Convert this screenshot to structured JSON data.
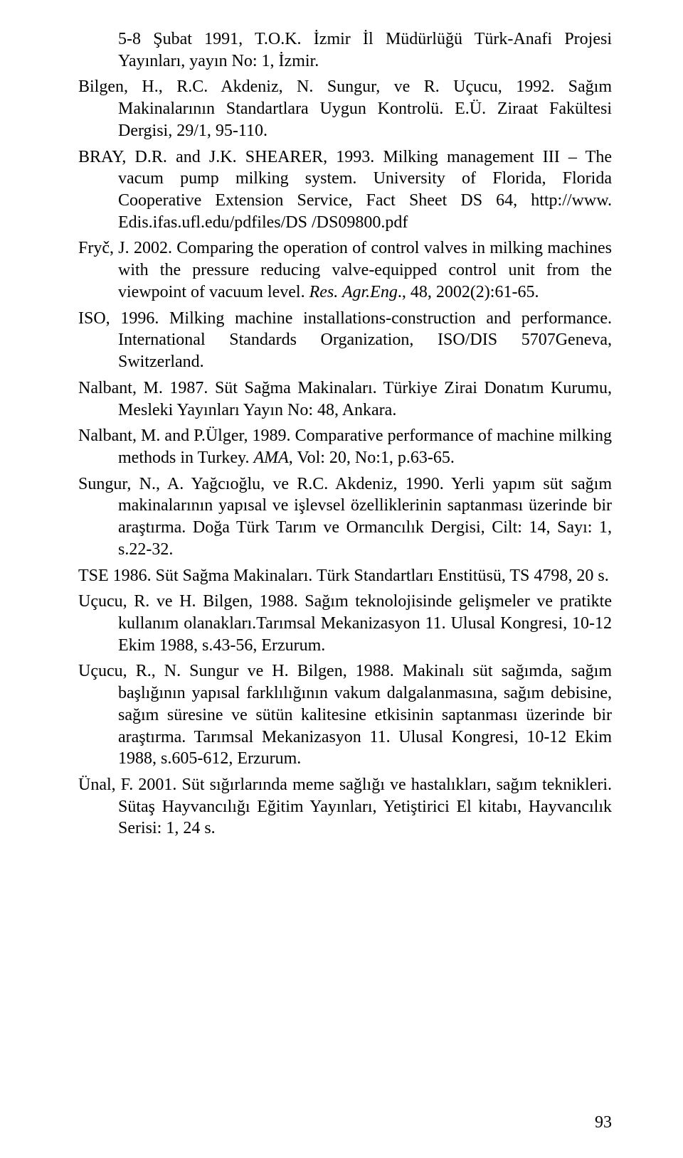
{
  "page": {
    "number": "93",
    "font_family": "Times New Roman",
    "base_fontsize": 24,
    "text_color": "#000000",
    "background_color": "#ffffff"
  },
  "references": {
    "r1a": "5-8 Şubat 1991, T.O.K. İzmir İl Müdürlüğü Türk-Anafi Projesi Yayınları, yayın No: 1, İzmir.",
    "r2": "Bilgen, H., R.C. Akdeniz, N. Sungur, ve R. Uçucu, 1992. Sağım Makinalarının Standartlara Uygun Kontrolü. E.Ü. Ziraat Fakültesi Dergisi, 29/1, 95-110.",
    "r3a": "BRAY, D.R. and J.K. SHEARER, 1993. Milking management III – The vacum pump milking system. University of Florida, Florida Cooperative Extension Service, Fact Sheet DS 64, http://www. Edis.ifas.ufl.edu/pdfiles/DS /DS09800.pdf",
    "r4a": "Fryč, J. 2002. Comparing the operation of control valves in milking machines with the pressure reducing valve-equipped control unit from the viewpoint of vacuum level. ",
    "r4b": "Res. Agr.Eng",
    "r4c": "., 48, 2002(2):61-65.",
    "r5": "ISO, 1996. Milking machine installations-construction and performance. International Standards Organization, ISO/DIS 5707Geneva, Switzerland.",
    "r6": "Nalbant, M. 1987. Süt Sağma Makinaları. Türkiye Zirai Donatım Kurumu, Mesleki Yayınları Yayın No: 48, Ankara.",
    "r7a": "Nalbant, M. and P.Ülger, 1989. Comparative performance of machine milking methods in Turkey. ",
    "r7b": "AMA",
    "r7c": ", Vol: 20, No:1, p.63-65.",
    "r8": "Sungur, N., A. Yağcıoğlu, ve R.C. Akdeniz, 1990. Yerli yapım süt sağım makinalarının yapısal ve işlevsel özelliklerinin saptanması üzerinde bir araştırma. Doğa Türk Tarım ve Ormancılık Dergisi, Cilt: 14, Sayı: 1, s.22-32.",
    "r9": "TSE 1986. Süt Sağma Makinaları. Türk Standartları Enstitüsü, TS 4798, 20 s.",
    "r10": "Uçucu, R. ve H. Bilgen, 1988. Sağım teknolojisinde gelişmeler ve pratikte kullanım olanakları.Tarımsal Mekanizasyon 11. Ulusal Kongresi, 10-12 Ekim 1988, s.43-56, Erzurum.",
    "r11": "Uçucu, R., N. Sungur ve H. Bilgen, 1988. Makinalı süt sağımda, sağım başlığının yapısal farklılığının vakum dalgalanmasına, sağım debisine, sağım süresine ve sütün kalitesine etkisinin saptanması üzerinde bir araştırma. Tarımsal Mekanizasyon 11. Ulusal Kongresi, 10-12 Ekim 1988, s.605-612, Erzurum.",
    "r12": "Ünal, F. 2001. Süt sığırlarında meme sağlığı ve hastalıkları, sağım teknikleri. Sütaş Hayvancılığı Eğitim Yayınları, Yetiştirici El kitabı, Hayvancılık Serisi: 1, 24 s."
  }
}
